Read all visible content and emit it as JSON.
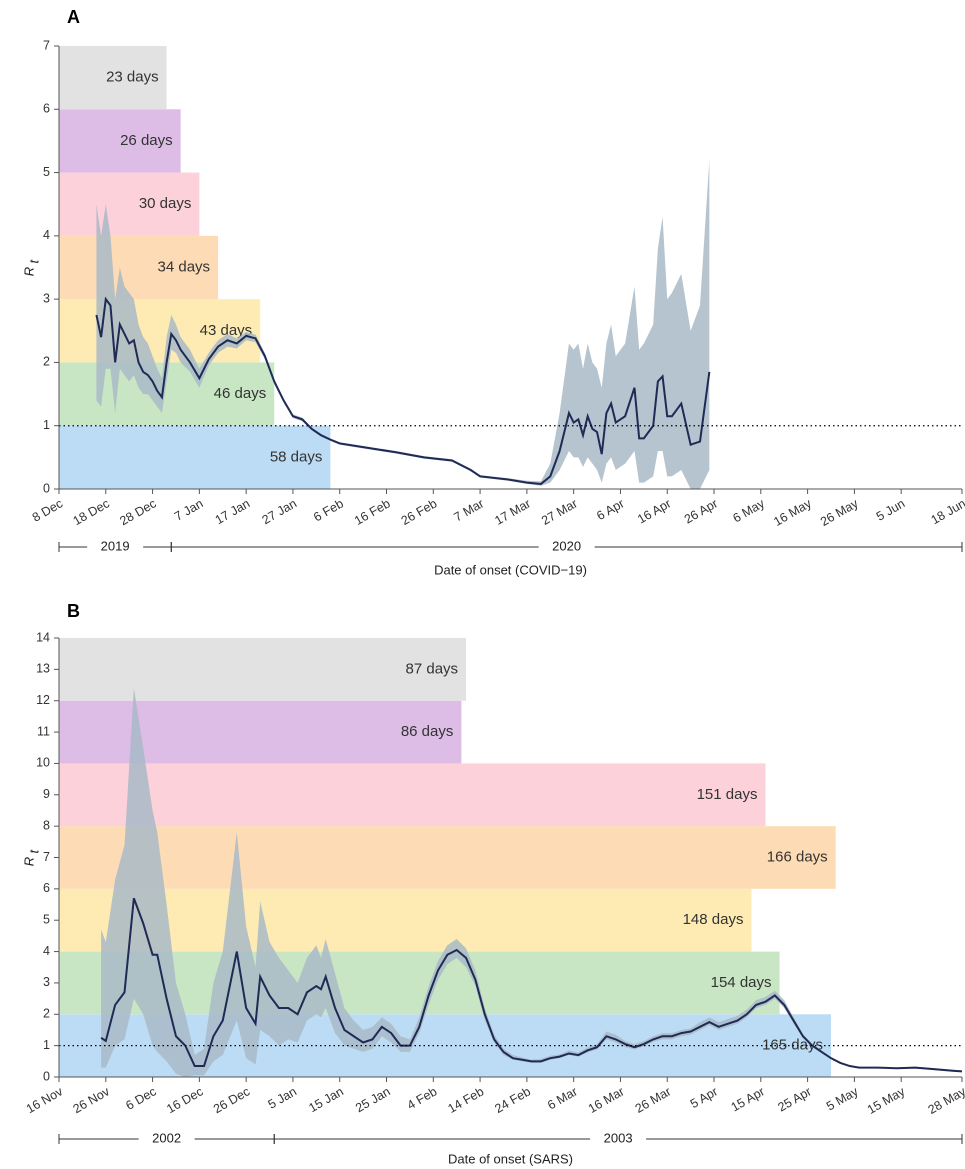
{
  "chart_data": [
    {
      "type": "line",
      "panel_label": "A",
      "xlabel": "Date of onset (COVID−19)",
      "ylabel": {
        "main": "R",
        "sub": "t"
      },
      "xlim": [
        0,
        193
      ],
      "ylim": [
        0,
        7
      ],
      "xticks": [
        {
          "value": 0,
          "label": "8 Dec"
        },
        {
          "value": 10,
          "label": "18 Dec"
        },
        {
          "value": 20,
          "label": "28 Dec"
        },
        {
          "value": 30,
          "label": "7 Jan"
        },
        {
          "value": 40,
          "label": "17 Jan"
        },
        {
          "value": 50,
          "label": "27 Jan"
        },
        {
          "value": 60,
          "label": "6 Feb"
        },
        {
          "value": 70,
          "label": "16 Feb"
        },
        {
          "value": 80,
          "label": "26 Feb"
        },
        {
          "value": 90,
          "label": "7 Mar"
        },
        {
          "value": 100,
          "label": "17 Mar"
        },
        {
          "value": 110,
          "label": "27 Mar"
        },
        {
          "value": 120,
          "label": "6 Apr"
        },
        {
          "value": 130,
          "label": "16 Apr"
        },
        {
          "value": 140,
          "label": "26 Apr"
        },
        {
          "value": 150,
          "label": "6 May"
        },
        {
          "value": 160,
          "label": "16 May"
        },
        {
          "value": 170,
          "label": "26 May"
        },
        {
          "value": 180,
          "label": "5 Jun"
        },
        {
          "value": 193,
          "label": "18 Jun"
        }
      ],
      "yticks": [
        0,
        1,
        2,
        3,
        4,
        5,
        6,
        7
      ],
      "ref_line": 1,
      "year_spans": [
        {
          "label": "2019",
          "start": 0,
          "end": 24
        },
        {
          "label": "2020",
          "start": 24,
          "end": 193
        }
      ],
      "durations": {
        "values": [
          58,
          46,
          43,
          34,
          30,
          26,
          23
        ],
        "value_labels": [
          "58 days",
          "46 days",
          "43 days",
          "34 days",
          "30 days",
          "26 days",
          "23 days"
        ],
        "ranges": [
          [
            0,
            1
          ],
          [
            1,
            2
          ],
          [
            2,
            3
          ],
          [
            3,
            4
          ],
          [
            4,
            5
          ],
          [
            5,
            6
          ],
          [
            6,
            7
          ]
        ],
        "colors": [
          "#bcdcf5",
          "#c8e6c4",
          "#fdebb3",
          "#fddcb5",
          "#fdd1da",
          "#ddbde6",
          "#e2e2e2"
        ]
      },
      "line_color": "#1f2a55",
      "band_color": "#a9bac7",
      "x": [
        8,
        9,
        10,
        11,
        12,
        13,
        14,
        15,
        16,
        17,
        18,
        19,
        20,
        21,
        22,
        23,
        24,
        25,
        26,
        28,
        30,
        32,
        34,
        36,
        38,
        40,
        42,
        44,
        46,
        48,
        50,
        52,
        54,
        56,
        58,
        60,
        66,
        72,
        78,
        84,
        88,
        90,
        96,
        100,
        103,
        105,
        107,
        109,
        110,
        111,
        112,
        113,
        114,
        115,
        116,
        117,
        118,
        119,
        121,
        123,
        124,
        125,
        127,
        128,
        129,
        130,
        131,
        133,
        135,
        137,
        139
      ],
      "values": [
        2.75,
        2.4,
        3.0,
        2.9,
        2.0,
        2.6,
        2.45,
        2.3,
        2.35,
        2.0,
        1.85,
        1.8,
        1.7,
        1.55,
        1.45,
        2.0,
        2.45,
        2.35,
        2.2,
        2.0,
        1.75,
        2.05,
        2.25,
        2.35,
        2.3,
        2.42,
        2.38,
        2.1,
        1.7,
        1.4,
        1.15,
        1.1,
        0.95,
        0.85,
        0.78,
        0.72,
        0.65,
        0.58,
        0.5,
        0.45,
        0.3,
        0.2,
        0.15,
        0.1,
        0.08,
        0.2,
        0.6,
        1.2,
        1.05,
        1.1,
        0.85,
        1.15,
        0.95,
        0.9,
        0.55,
        1.2,
        1.35,
        1.05,
        1.15,
        1.6,
        0.8,
        0.8,
        1.0,
        1.7,
        1.78,
        1.15,
        1.15,
        1.35,
        0.7,
        0.75,
        1.85
      ],
      "lower": [
        1.4,
        1.3,
        1.9,
        1.9,
        1.2,
        1.9,
        1.8,
        1.7,
        1.8,
        1.6,
        1.5,
        1.5,
        1.4,
        1.3,
        1.2,
        1.7,
        2.2,
        2.15,
        2.0,
        1.85,
        1.6,
        1.95,
        2.15,
        2.25,
        2.22,
        2.35,
        2.32,
        2.05,
        1.66,
        1.37,
        1.12,
        1.07,
        0.93,
        0.83,
        0.76,
        0.7,
        0.63,
        0.56,
        0.48,
        0.43,
        0.28,
        0.18,
        0.13,
        0.08,
        0.05,
        0.1,
        0.3,
        0.6,
        0.5,
        0.5,
        0.35,
        0.5,
        0.4,
        0.3,
        0.1,
        0.4,
        0.5,
        0.3,
        0.4,
        0.6,
        0.1,
        0.1,
        0.2,
        0.6,
        0.6,
        0.2,
        0.2,
        0.3,
        0,
        0,
        0.3
      ],
      "upper": [
        4.5,
        4.0,
        4.5,
        4.0,
        3.0,
        3.5,
        3.2,
        3.1,
        3.0,
        2.6,
        2.4,
        2.3,
        2.1,
        1.9,
        1.75,
        2.4,
        2.75,
        2.6,
        2.4,
        2.2,
        1.9,
        2.15,
        2.35,
        2.45,
        2.38,
        2.48,
        2.44,
        2.15,
        1.74,
        1.43,
        1.18,
        1.13,
        0.97,
        0.87,
        0.8,
        0.74,
        0.67,
        0.6,
        0.52,
        0.47,
        0.32,
        0.22,
        0.17,
        0.13,
        0.12,
        0.4,
        1.2,
        2.3,
        2.2,
        2.3,
        1.9,
        2.3,
        2.0,
        1.9,
        1.6,
        2.3,
        2.6,
        2.1,
        2.3,
        3.2,
        2.2,
        2.3,
        2.6,
        3.8,
        4.3,
        3.0,
        3.1,
        3.4,
        2.5,
        2.9,
        5.2
      ]
    },
    {
      "type": "line",
      "panel_label": "B",
      "xlabel": "Date of onset (SARS)",
      "ylabel": {
        "main": "R",
        "sub": "t"
      },
      "xlim": [
        0,
        193
      ],
      "ylim": [
        0,
        14
      ],
      "xticks": [
        {
          "value": 0,
          "label": "16 Nov"
        },
        {
          "value": 10,
          "label": "26 Nov"
        },
        {
          "value": 20,
          "label": "6 Dec"
        },
        {
          "value": 30,
          "label": "16 Dec"
        },
        {
          "value": 40,
          "label": "26 Dec"
        },
        {
          "value": 50,
          "label": "5 Jan"
        },
        {
          "value": 60,
          "label": "15 Jan"
        },
        {
          "value": 70,
          "label": "25 Jan"
        },
        {
          "value": 80,
          "label": "4 Feb"
        },
        {
          "value": 90,
          "label": "14 Feb"
        },
        {
          "value": 100,
          "label": "24 Feb"
        },
        {
          "value": 110,
          "label": "6 Mar"
        },
        {
          "value": 120,
          "label": "16 Mar"
        },
        {
          "value": 130,
          "label": "26 Mar"
        },
        {
          "value": 140,
          "label": "5 Apr"
        },
        {
          "value": 150,
          "label": "15 Apr"
        },
        {
          "value": 160,
          "label": "25 Apr"
        },
        {
          "value": 170,
          "label": "5 May"
        },
        {
          "value": 180,
          "label": "15 May"
        },
        {
          "value": 193,
          "label": "28 May"
        }
      ],
      "yticks": [
        0,
        1,
        2,
        3,
        4,
        5,
        6,
        7,
        8,
        9,
        10,
        11,
        12,
        13,
        14
      ],
      "ref_line": 1,
      "year_spans": [
        {
          "label": "2002",
          "start": 0,
          "end": 46
        },
        {
          "label": "2003",
          "start": 46,
          "end": 193
        }
      ],
      "durations": {
        "values": [
          165,
          154,
          148,
          166,
          151,
          86,
          87
        ],
        "value_labels": [
          "165 days",
          "154 days",
          "148 days",
          "166 days",
          "151 days",
          "86 days",
          "87 days"
        ],
        "ranges": [
          [
            0,
            2
          ],
          [
            2,
            4
          ],
          [
            4,
            6
          ],
          [
            6,
            8
          ],
          [
            8,
            10
          ],
          [
            10,
            12
          ],
          [
            12,
            14
          ]
        ],
        "colors": [
          "#bcdcf5",
          "#c8e6c4",
          "#fdebb3",
          "#fddcb5",
          "#fdd1da",
          "#ddbde6",
          "#e2e2e2"
        ]
      },
      "line_color": "#1f2a55",
      "band_color": "#a9bac7",
      "x": [
        9,
        10,
        12,
        14,
        16,
        18,
        20,
        21,
        23,
        25,
        27,
        29,
        31,
        33,
        35,
        38,
        40,
        42,
        43,
        45,
        47,
        49,
        51,
        53,
        55,
        56,
        57,
        59,
        61,
        63,
        65,
        67,
        69,
        71,
        73,
        75,
        77,
        79,
        81,
        83,
        85,
        87,
        89,
        91,
        93,
        95,
        97,
        99,
        101,
        103,
        105,
        107,
        109,
        111,
        113,
        115,
        117,
        119,
        121,
        123,
        125,
        127,
        129,
        131,
        133,
        135,
        137,
        139,
        141,
        143,
        145,
        147,
        149,
        151,
        153,
        155,
        157,
        159,
        161,
        163,
        165,
        167,
        169,
        171,
        175,
        179,
        183,
        187,
        191,
        193
      ],
      "values": [
        1.25,
        1.15,
        2.3,
        2.7,
        5.7,
        4.9,
        3.9,
        3.9,
        2.5,
        1.3,
        1.0,
        0.35,
        0.35,
        1.3,
        1.8,
        4.0,
        2.2,
        1.7,
        3.2,
        2.6,
        2.2,
        2.2,
        2.0,
        2.7,
        2.9,
        2.8,
        3.2,
        2.2,
        1.5,
        1.3,
        1.1,
        1.2,
        1.6,
        1.4,
        1.0,
        1.0,
        1.6,
        2.6,
        3.4,
        3.9,
        4.05,
        3.8,
        3.1,
        2.0,
        1.2,
        0.8,
        0.6,
        0.55,
        0.5,
        0.5,
        0.6,
        0.65,
        0.75,
        0.7,
        0.85,
        0.95,
        1.3,
        1.2,
        1.05,
        0.95,
        1.05,
        1.2,
        1.3,
        1.3,
        1.4,
        1.45,
        1.6,
        1.75,
        1.6,
        1.7,
        1.8,
        2.0,
        2.3,
        2.4,
        2.6,
        2.3,
        1.8,
        1.3,
        1.0,
        0.8,
        0.6,
        0.45,
        0.35,
        0.3,
        0.3,
        0.28,
        0.3,
        0.25,
        0.2,
        0.18
      ],
      "lower": [
        0.3,
        0.3,
        1.0,
        1.2,
        2.5,
        2.0,
        1.0,
        0.8,
        0.5,
        0.1,
        0.0,
        0.05,
        0.05,
        0.5,
        0.7,
        1.8,
        0.6,
        0.4,
        1.5,
        1.3,
        1.0,
        1.2,
        1.1,
        1.8,
        2.0,
        1.9,
        2.2,
        1.4,
        1.0,
        0.9,
        0.8,
        0.9,
        1.3,
        1.1,
        0.8,
        0.8,
        1.4,
        2.3,
        3.1,
        3.6,
        3.8,
        3.5,
        2.9,
        1.8,
        1.1,
        0.7,
        0.55,
        0.5,
        0.45,
        0.45,
        0.55,
        0.6,
        0.7,
        0.64,
        0.78,
        0.88,
        1.2,
        1.1,
        0.95,
        0.88,
        0.98,
        1.12,
        1.2,
        1.2,
        1.3,
        1.35,
        1.5,
        1.65,
        1.5,
        1.6,
        1.7,
        1.9,
        2.2,
        2.3,
        2.5,
        2.2,
        1.7,
        1.25,
        0.95,
        0.77,
        0.58,
        0.43,
        0.33,
        0.28,
        0.28,
        0.26,
        0.27,
        0.22,
        0.17,
        0.15
      ],
      "upper": [
        4.7,
        4.3,
        6.3,
        7.4,
        12.4,
        10.5,
        8.5,
        7.8,
        5.5,
        3.0,
        2.0,
        0.7,
        0.9,
        3.0,
        4.0,
        7.8,
        4.8,
        3.5,
        5.6,
        4.3,
        3.8,
        3.4,
        3.0,
        3.8,
        4.2,
        3.8,
        4.4,
        3.3,
        2.2,
        1.8,
        1.5,
        1.6,
        1.9,
        1.7,
        1.3,
        1.2,
        1.9,
        2.9,
        3.7,
        4.2,
        4.4,
        4.1,
        3.4,
        2.2,
        1.35,
        0.9,
        0.7,
        0.62,
        0.55,
        0.58,
        0.68,
        0.72,
        0.85,
        0.78,
        0.95,
        1.05,
        1.45,
        1.35,
        1.15,
        1.05,
        1.15,
        1.3,
        1.4,
        1.4,
        1.5,
        1.55,
        1.75,
        1.9,
        1.75,
        1.85,
        1.95,
        2.15,
        2.45,
        2.55,
        2.75,
        2.45,
        1.9,
        1.38,
        1.05,
        0.84,
        0.63,
        0.48,
        0.37,
        0.32,
        0.32,
        0.3,
        0.33,
        0.28,
        0.23,
        0.21
      ]
    }
  ]
}
